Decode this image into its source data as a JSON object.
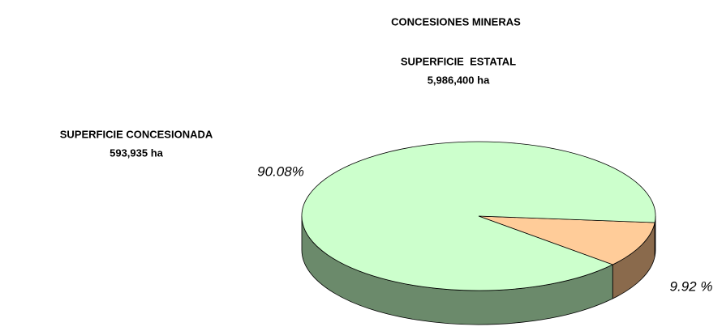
{
  "chart_data": {
    "type": "pie3d",
    "title": "CONCESIONES MINERAS",
    "annotations": [
      "SUPERFICIE  ESTATAL",
      "5,986,400 ha",
      "SUPERFICIE CONCESIONADA",
      "593,935 ha"
    ],
    "values": [
      9.92,
      90.08
    ],
    "value_labels": [
      "9.92 %",
      "90.08%"
    ],
    "colors": [
      "#ffcc99",
      "#ccffcc"
    ],
    "side_colors": [
      "#8a6a4c",
      "#6b8a6b"
    ]
  }
}
